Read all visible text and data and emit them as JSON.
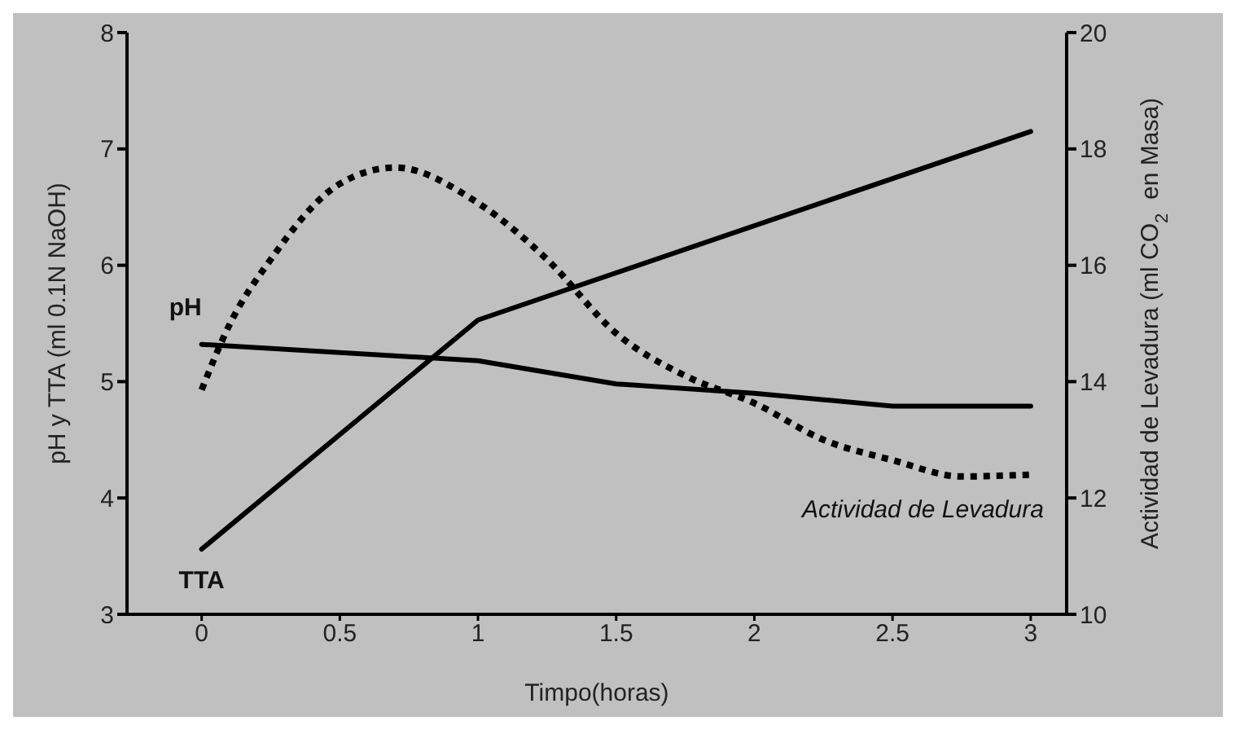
{
  "chart_data": {
    "type": "line",
    "xlabel": "Timpo(horas)",
    "ylabel": "pH y TTA (ml 0.1N NaOH)",
    "y2label": "Actividad de Levadura (ml CO$_{2}$  en Masa)",
    "xlim": [
      -0.27,
      3.13
    ],
    "xticks": [
      0,
      0.5,
      1,
      1.5,
      2,
      2.5,
      3
    ],
    "ylim": [
      3,
      8
    ],
    "yticks": [
      3,
      4,
      5,
      6,
      7,
      8
    ],
    "y2lim": [
      10,
      20
    ],
    "y2ticks": [
      10,
      12,
      14,
      16,
      18,
      20
    ],
    "grid": false,
    "legend": false,
    "marker": "none",
    "series": [
      {
        "name": "pH",
        "color": "#000000",
        "line_style": "solid",
        "x": [
          0,
          1,
          1.5,
          2,
          2.5,
          3
        ],
        "values": [
          5.32,
          5.18,
          4.98,
          4.9,
          4.79,
          4.79
        ]
      },
      {
        "name": "TTA",
        "color": "#000000",
        "line_style": "solid",
        "x": [
          0,
          1,
          3
        ],
        "values": [
          3.56,
          5.53,
          7.15
        ]
      },
      {
        "name": "Actividad de Levadura",
        "color": "#000000",
        "line_style": "dotted",
        "axis": "y2",
        "x": [
          0,
          0.1,
          0.25,
          0.5,
          0.7,
          1,
          1.25,
          1.5,
          1.75,
          2,
          2.25,
          2.5,
          2.75,
          3
        ],
        "values": [
          13.86,
          14.97,
          16.1,
          17.4,
          17.68,
          17.07,
          16.1,
          14.83,
          14.1,
          13.63,
          13.0,
          12.65,
          12.37,
          12.4
        ]
      }
    ]
  }
}
